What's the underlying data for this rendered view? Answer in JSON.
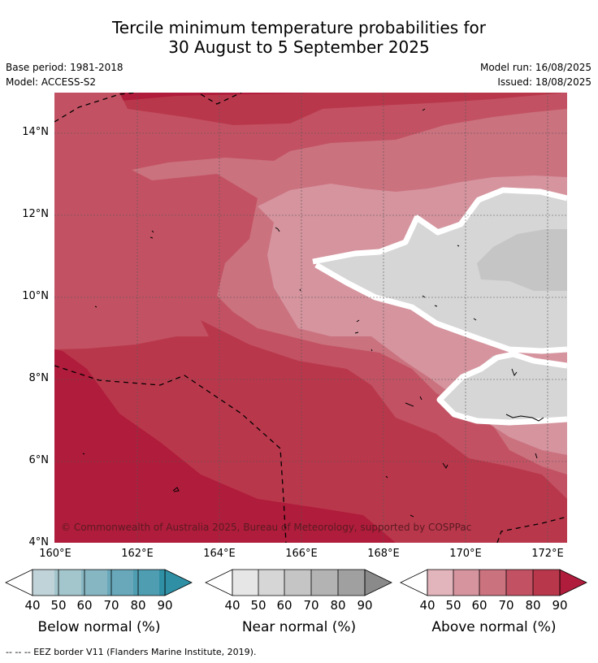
{
  "title_line1": "Tercile minimum temperature probabilities for",
  "title_line2": "30 August to 5 September 2025",
  "base_period": "Base period: 1981-2018",
  "model": "Model: ACCESS-S2",
  "model_run": "Model run: 16/08/2025",
  "issued": "Issued: 18/08/2025",
  "copyright": "© Commonwealth of Australia 2025, Bureau of Meteorology, supported by COSPPac",
  "lat_labels": [
    "14°N",
    "12°N",
    "10°N",
    "8°N",
    "6°N",
    "4°N"
  ],
  "lon_labels": [
    "160°E",
    "162°E",
    "164°E",
    "166°E",
    "168°E",
    "170°E",
    "172°E"
  ],
  "legends": [
    {
      "caption": "Below normal (%)",
      "ticks": [
        "40",
        "50",
        "60",
        "70",
        "80",
        "90"
      ],
      "colors": [
        "#c0d3d9",
        "#a3c6cc",
        "#86b6c2",
        "#68a8ba",
        "#4f9db1",
        "#2f8fa5"
      ]
    },
    {
      "caption": "Near normal (%)",
      "ticks": [
        "40",
        "50",
        "60",
        "70",
        "80",
        "90"
      ],
      "colors": [
        "#e6e6e6",
        "#d6d6d6",
        "#c5c5c5",
        "#b3b3b3",
        "#a0a0a0",
        "#8a8a8a"
      ]
    },
    {
      "caption": "Above normal (%)",
      "ticks": [
        "40",
        "50",
        "60",
        "70",
        "80",
        "90"
      ],
      "colors": [
        "#e2b4bb",
        "#d5949e",
        "#cb727f",
        "#c25263",
        "#b9374b",
        "#b01c3b"
      ]
    }
  ],
  "footnote": "--  --  -- EEZ border V11 (Flanders Marine Institute, 2019).",
  "colors": {
    "above_90": "#b01c3b",
    "above_80": "#b9374b",
    "above_70": "#c25263",
    "above_60": "#cb727f",
    "above_50": "#d5949e",
    "near_50": "#d6d6d6",
    "near_60": "#c5c5c5"
  }
}
